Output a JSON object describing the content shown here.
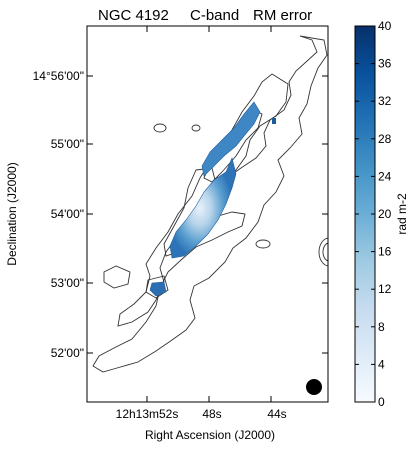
{
  "figure": {
    "title_parts": [
      "NGC 4192",
      "C-band",
      "RM error"
    ],
    "xlabel": "Right Ascension (J2000)",
    "ylabel": "Declination (J2000)",
    "x_ticks": [
      "12h13m52s",
      "48s",
      "44s"
    ],
    "y_ticks": [
      "14°56'00\"",
      "55'00\"",
      "54'00\"",
      "53'00\"",
      "52'00\""
    ],
    "colorbar": {
      "label": "rad m-2",
      "ticks": [
        "40",
        "36",
        "32",
        "28",
        "24",
        "20",
        "16",
        "12",
        "8",
        "4",
        "0"
      ],
      "range": [
        0,
        40
      ],
      "colormap": "Blues",
      "colors": [
        "#f7fbff",
        "#deebf7",
        "#c6dbef",
        "#9ecae1",
        "#6baed6",
        "#4292c6",
        "#2171b5",
        "#08519c",
        "#08306b"
      ]
    },
    "beam": "filled-black-circle"
  }
}
